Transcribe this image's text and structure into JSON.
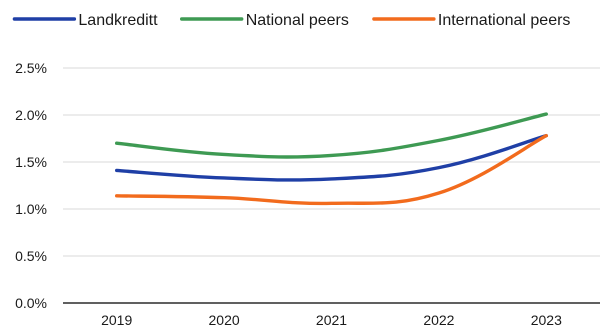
{
  "chart_data": {
    "type": "line",
    "title": "",
    "xlabel": "",
    "ylabel": "",
    "categories": [
      "2019",
      "2020",
      "2021",
      "2022",
      "2023"
    ],
    "ylim": [
      0,
      2.5
    ],
    "yticks": [
      0,
      0.5,
      1.0,
      1.5,
      2.0,
      2.5
    ],
    "ytick_labels": [
      "0.0%",
      "0.5%",
      "1.0%",
      "1.5%",
      "2.0%",
      "2.5%"
    ],
    "grid": true,
    "smooth": true,
    "legend_position": "top",
    "series": [
      {
        "name": "Landkreditt",
        "color": "#1f3fa6",
        "values": [
          1.41,
          1.33,
          1.32,
          1.44,
          1.78
        ]
      },
      {
        "name": "National peers",
        "color": "#3e9a53",
        "values": [
          1.7,
          1.58,
          1.57,
          1.73,
          2.01
        ]
      },
      {
        "name": "International peers",
        "color": "#f26b1d",
        "values": [
          1.14,
          1.12,
          1.06,
          1.17,
          1.78
        ]
      }
    ]
  }
}
